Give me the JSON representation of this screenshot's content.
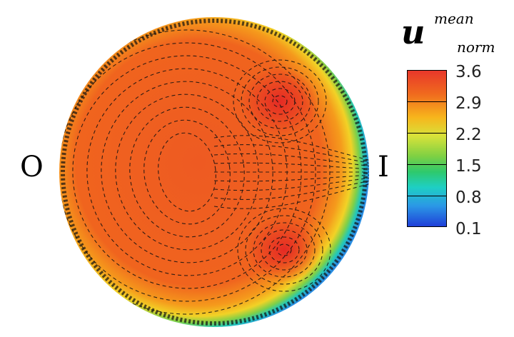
{
  "labels": {
    "left": "O",
    "right": "I"
  },
  "legend": {
    "symbol": "u",
    "superscript": "mean",
    "subscript": "norm",
    "ticks": [
      "3.6",
      "2.9",
      "2.2",
      "1.5",
      "0.8",
      "0.1"
    ],
    "colors": [
      "#1f3fd8",
      "#2b97e6",
      "#1ecfc4",
      "#2ec96c",
      "#7ed043",
      "#d8e23a",
      "#f7b51c",
      "#f06a1e",
      "#e8372a"
    ]
  }
}
